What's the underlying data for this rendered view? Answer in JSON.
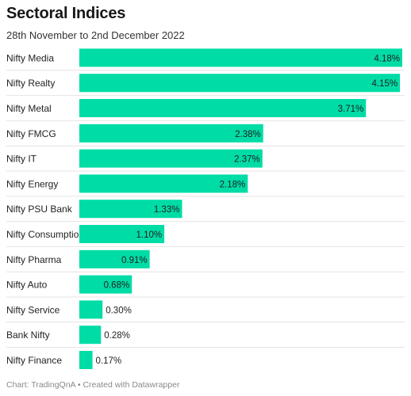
{
  "header": {
    "title": "Sectoral Indices",
    "subtitle": "28th November to 2nd December 2022"
  },
  "footer": {
    "text": "Chart: TradingQnA • Created with Datawrapper"
  },
  "colors": {
    "bar": "#00dca6",
    "separator": "#e4e4e4",
    "label": "#222222"
  },
  "chart_data": {
    "type": "bar",
    "orientation": "horizontal",
    "title": "Sectoral Indices",
    "subtitle": "28th November to 2nd December 2022",
    "categories": [
      "Nifty Media",
      "Nifty Realty",
      "Nifty Metal",
      "Nifty FMCG",
      "Nifty IT",
      "Nifty Energy",
      "Nifty PSU Bank",
      "Nifty Consumption",
      "Nifty Pharma",
      "Nifty Auto",
      "Nifty Service",
      "Bank Nifty",
      "Nifty Finance"
    ],
    "values": [
      4.18,
      4.15,
      3.71,
      2.38,
      2.37,
      2.18,
      1.33,
      1.1,
      0.91,
      0.68,
      0.3,
      0.28,
      0.17
    ],
    "value_labels": [
      "4.18%",
      "4.15%",
      "3.71%",
      "2.38%",
      "2.37%",
      "2.18%",
      "1.33%",
      "1.10%",
      "0.91%",
      "0.68%",
      "0.30%",
      "0.28%",
      "0.17%"
    ],
    "xlim": [
      0,
      4.18
    ],
    "grid": false,
    "legend": "none"
  }
}
